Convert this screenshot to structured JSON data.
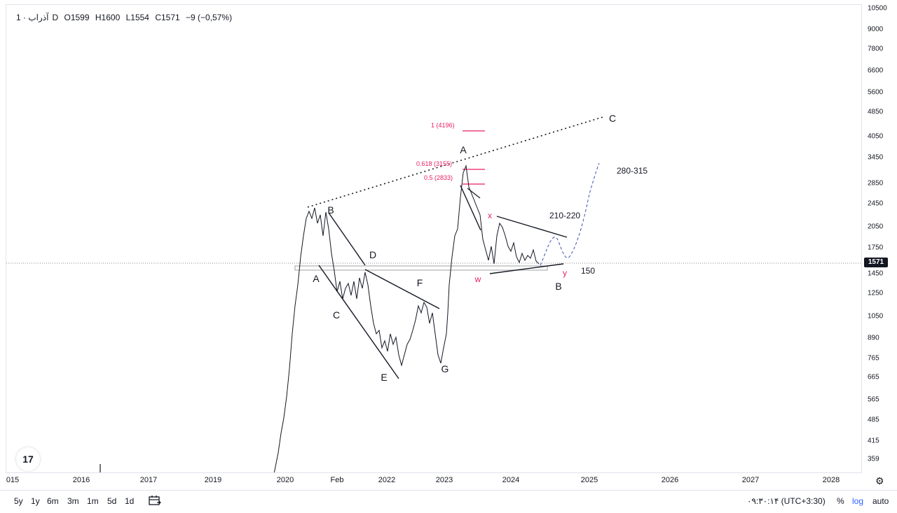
{
  "legend": {
    "symbol": "آذراب",
    "interval": "· 1D",
    "open": "O1599",
    "high": "H1600",
    "low": "L1554",
    "close": "C1571",
    "change": "−9 (−0,57%)"
  },
  "price_axis": {
    "ticks": [
      "10500",
      "9000",
      "7800",
      "6600",
      "5600",
      "4850",
      "4050",
      "3450",
      "2850",
      "2450",
      "2050",
      "1750",
      "1450",
      "1250",
      "1050",
      "890",
      "765",
      "665",
      "565",
      "485",
      "415",
      "359"
    ],
    "last_price": "1571"
  },
  "time_axis": {
    "ticks": [
      "015",
      "2016",
      "2017",
      "2019",
      "2020",
      "Feb",
      "2022",
      "2023",
      "2024",
      "2025",
      "2026",
      "2027",
      "2028"
    ]
  },
  "wave_labels": [
    "A",
    "B",
    "C",
    "D",
    "E",
    "F",
    "G",
    "A",
    "B",
    "C"
  ],
  "pink_labels": [
    "x",
    "w",
    "y"
  ],
  "notes": [
    "280-315",
    "210-220",
    "150"
  ],
  "fib_levels": [
    "1 (4196)",
    "0.618 (3155)",
    "0.5 (2833)"
  ],
  "toolbar": {
    "ranges": [
      "5y",
      "1y",
      "6m",
      "3m",
      "1m",
      "5d",
      "1d"
    ],
    "time": "۰۹:۳۰:۱۴ (UTC+3:30)",
    "percent": "%",
    "log": "log",
    "auto": "auto"
  },
  "logo": "17",
  "icons": {
    "compare": "calendar-range-icon",
    "settings": "gear-icon"
  },
  "colors": {
    "accent": "#2962ff",
    "fib": "#e91e63",
    "wave_projection": "#3f51b5",
    "price_line": "#131722"
  }
}
